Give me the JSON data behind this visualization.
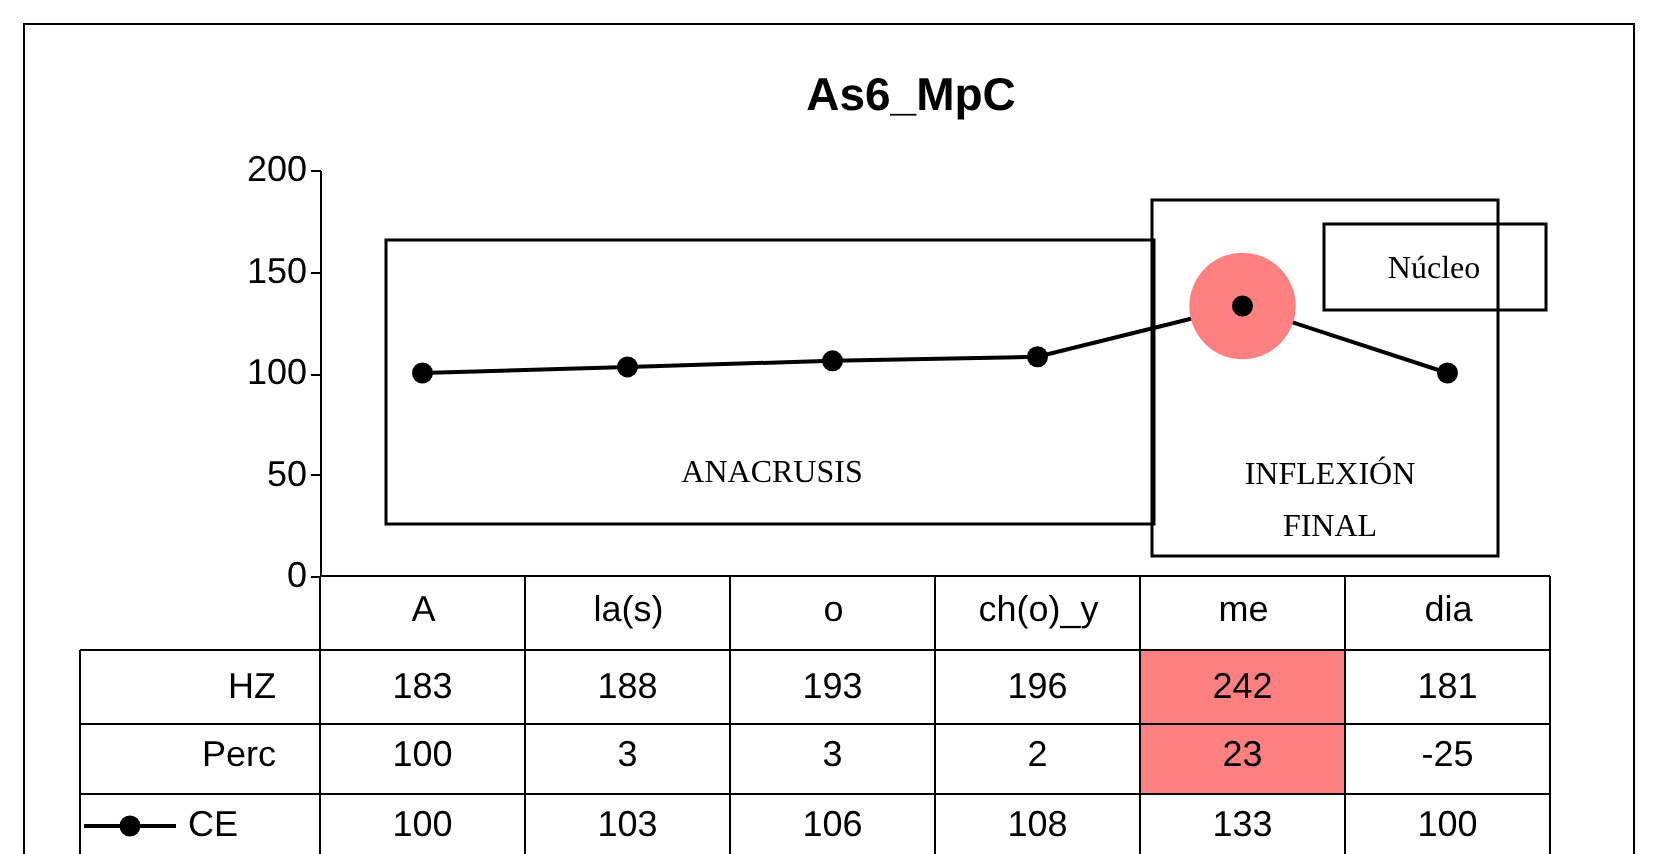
{
  "chart_data": {
    "type": "line",
    "title": "As6_MpC",
    "categories": [
      "A",
      "la(s)",
      "o",
      "ch(o)_y",
      "me",
      "dia"
    ],
    "series": [
      {
        "name": "CE",
        "color": "#000000",
        "values": [
          100,
          103,
          106,
          108,
          133,
          100
        ],
        "value_labels": [
          "100",
          "103",
          "106",
          "108",
          "133",
          "100"
        ]
      },
      {
        "type": "scatter",
        "color": "#ff8080",
        "values": [
          null,
          null,
          null,
          null,
          133,
          null
        ]
      }
    ],
    "ylim": [
      0,
      200
    ],
    "yticks": [
      0,
      50,
      100,
      150,
      200
    ],
    "grid": false,
    "marker": "circle",
    "line_style": "solid",
    "legend": "bottom",
    "annotations": [
      "ANACRUSIS",
      "INFLEXIÓN FINAL",
      "Núcleo",
      "HZ",
      "183",
      "188",
      "193",
      "196",
      "242",
      "181",
      "Perc",
      "100",
      "3",
      "3",
      "2",
      "23",
      "-25"
    ]
  }
}
